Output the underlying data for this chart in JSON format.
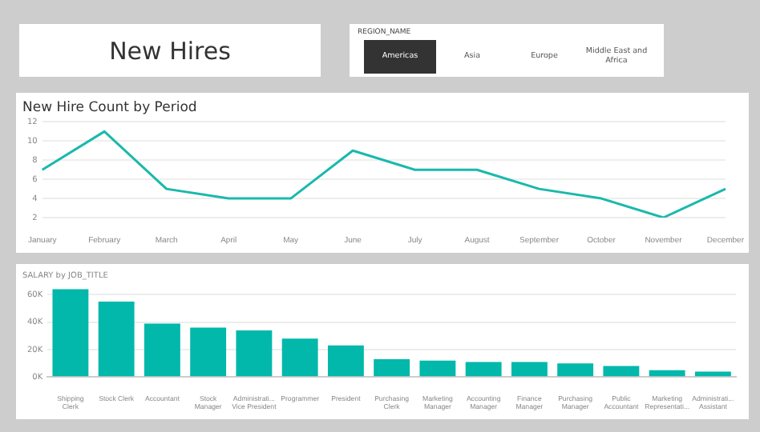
{
  "chart_data": [
    {
      "type": "other",
      "title": "New Hires"
    },
    {
      "type": "other",
      "legend_title": "REGION_NAME",
      "categories": [
        "Americas",
        "Asia",
        "Europe",
        "Middle East and Africa"
      ]
    },
    {
      "type": "line",
      "title": "New Hire Count by Period",
      "categories": [
        "January",
        "February",
        "March",
        "April",
        "May",
        "June",
        "July",
        "August",
        "September",
        "October",
        "November",
        "December"
      ],
      "values": [
        7,
        11,
        5,
        4,
        4,
        9,
        7,
        7,
        5,
        4,
        2,
        5
      ],
      "color": "#1ab9ab",
      "ylim": [
        2,
        12
      ],
      "yticks": [
        2,
        4,
        6,
        8,
        10,
        12
      ],
      "grid": "y",
      "legend": false,
      "marker": "none",
      "line_style": "solid"
    },
    {
      "type": "bar",
      "title": "SALARY by JOB_TITLE",
      "categories": [
        "Shipping Clerk",
        "Stock Clerk",
        "Accountant",
        "Stock Manager",
        "Administrati... Vice President",
        "Programmer",
        "President",
        "Purchasing Clerk",
        "Marketing Manager",
        "Accounting Manager",
        "Finance Manager",
        "Purchasing Manager",
        "Public Accountant",
        "Marketing Representati...",
        "Administrati... Assistant"
      ],
      "values": [
        64000,
        55000,
        39000,
        36000,
        34000,
        28000,
        23000,
        13000,
        12000,
        11000,
        11000,
        10000,
        8000,
        5000,
        4000
      ],
      "color": "#01b8aa",
      "ylim": [
        0,
        66000
      ],
      "yticks": [
        {
          "value": 0,
          "label": "0K"
        },
        {
          "value": 20000,
          "label": "20K"
        },
        {
          "value": 40000,
          "label": "40K"
        },
        {
          "value": 60000,
          "label": "60K"
        }
      ],
      "grid": "y",
      "legend": false
    }
  ]
}
